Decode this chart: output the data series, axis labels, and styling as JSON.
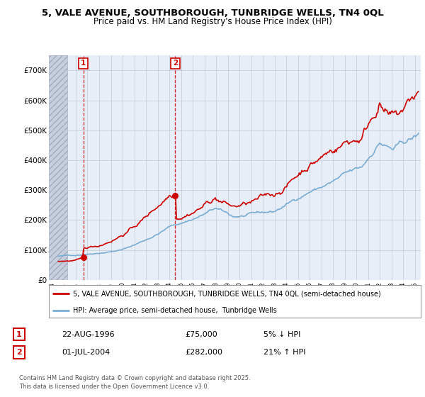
{
  "title": "5, VALE AVENUE, SOUTHBOROUGH, TUNBRIDGE WELLS, TN4 0QL",
  "subtitle": "Price paid vs. HM Land Registry's House Price Index (HPI)",
  "ylim": [
    0,
    750000
  ],
  "yticks": [
    0,
    100000,
    200000,
    300000,
    400000,
    500000,
    600000,
    700000
  ],
  "ytick_labels": [
    "£0",
    "£100K",
    "£200K",
    "£300K",
    "£400K",
    "£500K",
    "£600K",
    "£700K"
  ],
  "xlim_start": 1993.7,
  "xlim_end": 2025.5,
  "sale1_date": 1996.64,
  "sale1_price": 75000,
  "sale2_date": 2004.5,
  "sale2_price": 282000,
  "hatch_end": 1995.3,
  "legend_line1": "5, VALE AVENUE, SOUTHBOROUGH, TUNBRIDGE WELLS, TN4 0QL (semi-detached house)",
  "legend_line2": "HPI: Average price, semi-detached house,  Tunbridge Wells",
  "annotation1_date": "22-AUG-1996",
  "annotation1_price": "£75,000",
  "annotation1_hpi": "5% ↓ HPI",
  "annotation2_date": "01-JUL-2004",
  "annotation2_price": "£282,000",
  "annotation2_hpi": "21% ↑ HPI",
  "footer": "Contains HM Land Registry data © Crown copyright and database right 2025.\nThis data is licensed under the Open Government Licence v3.0.",
  "price_color": "#cc0000",
  "hpi_color": "#7aadd4",
  "background_color": "#e8eef8",
  "hatch_color": "#c8d0e0",
  "grid_color": "#c0c8d8",
  "dashed_line_color": "#cc0000"
}
